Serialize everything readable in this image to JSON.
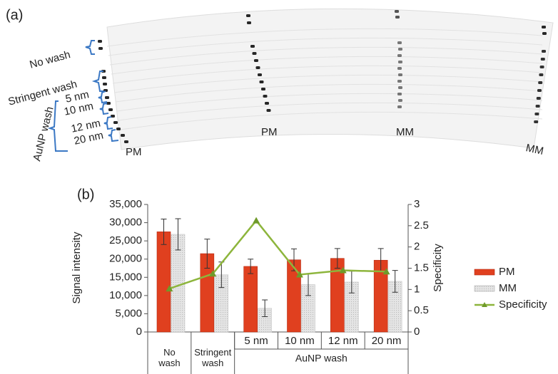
{
  "panel_a": {
    "label": "(a)",
    "no_wash": "No wash",
    "stringent_wash": "Stringent wash",
    "sizes": [
      "5 nm",
      "10 nm",
      "12 nm",
      "20 nm"
    ],
    "aunp_wash": "AuNP wash",
    "column_labels": [
      "PM",
      "PM",
      "MM",
      "MM"
    ]
  },
  "chart_data": {
    "type": "bar",
    "panel_label": "(b)",
    "y_label": "Signal intensity",
    "y2_label": "Specificity",
    "categories": [
      null,
      null,
      "5 nm",
      "10 nm",
      "12 nm",
      "20 nm"
    ],
    "groups": [
      {
        "name": "No wash",
        "size": 1
      },
      {
        "name": "Stringent wash",
        "size": 1
      },
      {
        "name": "AuNP wash",
        "size": 4
      }
    ],
    "series": [
      {
        "name": "PM",
        "color": "#e0401f",
        "values": [
          27500,
          21500,
          18000,
          19800,
          20200,
          19700
        ],
        "errors": [
          3500,
          4000,
          2000,
          3000,
          2700,
          3200
        ]
      },
      {
        "name": "MM",
        "color": "#d8d8d8",
        "values": [
          26800,
          15700,
          6500,
          13000,
          13700,
          13900
        ],
        "errors": [
          4300,
          3500,
          2300,
          3000,
          3000,
          3000
        ]
      },
      {
        "name": "Specificity",
        "type": "line",
        "axis": "y2",
        "color": "#8db53c",
        "values": [
          1.02,
          1.37,
          2.62,
          1.35,
          1.45,
          1.42
        ]
      }
    ],
    "ylim": [
      0,
      35000
    ],
    "yticks": [
      0,
      {
        "value": 5000,
        "label": "5,000"
      },
      {
        "value": 10000,
        "label": "10,000"
      },
      {
        "value": 15000,
        "label": "15,000"
      },
      {
        "value": 20000,
        "label": "20,000"
      },
      {
        "value": 25000,
        "label": "25,000"
      },
      {
        "value": 30000,
        "label": "30,000"
      },
      {
        "value": 35000,
        "label": "35,000"
      }
    ],
    "y2lim": [
      0,
      3
    ],
    "y2ticks": [
      0,
      0.5,
      1,
      1.5,
      2,
      2.5,
      3
    ]
  }
}
